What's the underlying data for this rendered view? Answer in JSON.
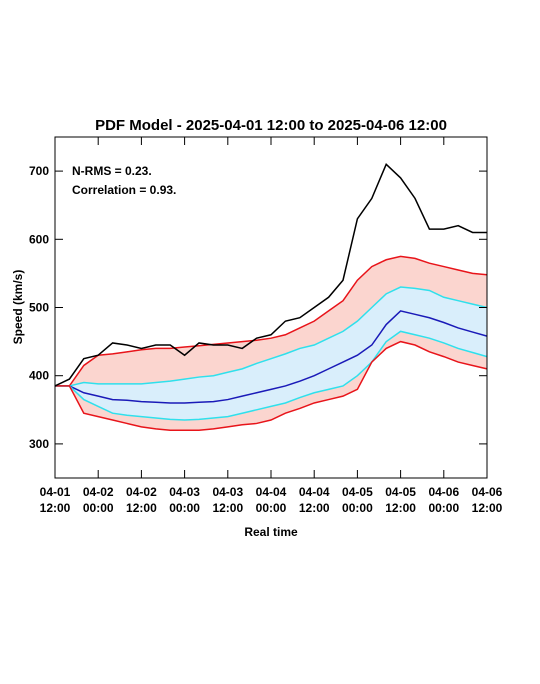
{
  "chart_data": {
    "type": "line",
    "title": "PDF Model - 2025-04-01 12:00 to 2025-04-06 12:00",
    "xlabel": "Real time",
    "ylabel": "Speed (km/s)",
    "annotations": [
      "N-RMS = 0.23.",
      "Correlation = 0.93."
    ],
    "x": [
      0,
      4,
      8,
      12,
      16,
      20,
      24,
      28,
      32,
      36,
      40,
      44,
      48,
      52,
      56,
      60,
      64,
      68,
      72,
      76,
      80,
      84,
      88,
      92,
      96,
      100,
      104,
      108,
      112,
      116,
      120
    ],
    "xlim": [
      0,
      120
    ],
    "xticks": [
      {
        "value": 0,
        "label": "04-01 12:00"
      },
      {
        "value": 12,
        "label": "04-02 00:00"
      },
      {
        "value": 24,
        "label": "04-02 12:00"
      },
      {
        "value": 36,
        "label": "04-03 00:00"
      },
      {
        "value": 48,
        "label": "04-03 12:00"
      },
      {
        "value": 60,
        "label": "04-04 00:00"
      },
      {
        "value": 72,
        "label": "04-04 12:00"
      },
      {
        "value": 84,
        "label": "04-05 00:00"
      },
      {
        "value": 96,
        "label": "04-05 12:00"
      },
      {
        "value": 108,
        "label": "04-06 00:00"
      },
      {
        "value": 120,
        "label": "04-06 12:00"
      }
    ],
    "ylim": [
      250,
      750
    ],
    "yticks": [
      300,
      400,
      500,
      600,
      700
    ],
    "band_colors": [
      "#fbd5cf",
      "#d9eefb"
    ],
    "series": [
      {
        "color": "#e8141a",
        "values": [
          385,
          385,
          415,
          430,
          432,
          435,
          438,
          440,
          440,
          442,
          444,
          446,
          448,
          450,
          452,
          455,
          460,
          470,
          480,
          495,
          510,
          540,
          560,
          570,
          575,
          572,
          565,
          560,
          555,
          550,
          548
        ]
      },
      {
        "color": "#2fe0ec",
        "values": [
          385,
          385,
          390,
          388,
          388,
          388,
          388,
          390,
          392,
          395,
          398,
          400,
          405,
          410,
          418,
          425,
          432,
          440,
          445,
          455,
          465,
          480,
          500,
          520,
          530,
          528,
          525,
          515,
          510,
          505,
          500
        ]
      },
      {
        "color": "#1a1ab8",
        "values": [
          385,
          385,
          375,
          370,
          365,
          364,
          362,
          361,
          360,
          360,
          361,
          362,
          365,
          370,
          375,
          380,
          385,
          392,
          400,
          410,
          420,
          430,
          445,
          475,
          495,
          490,
          485,
          478,
          470,
          464,
          458
        ]
      },
      {
        "color": "#2fe0ec",
        "values": [
          385,
          385,
          365,
          355,
          345,
          342,
          340,
          338,
          336,
          335,
          336,
          338,
          340,
          345,
          350,
          355,
          360,
          368,
          375,
          380,
          385,
          400,
          420,
          450,
          465,
          460,
          455,
          448,
          440,
          434,
          428
        ]
      },
      {
        "color": "#e8141a",
        "values": [
          385,
          385,
          345,
          340,
          335,
          330,
          325,
          322,
          320,
          320,
          320,
          322,
          325,
          328,
          330,
          335,
          345,
          352,
          360,
          365,
          370,
          380,
          420,
          440,
          450,
          445,
          435,
          428,
          420,
          415,
          410
        ]
      },
      {
        "color": "#000000",
        "values": [
          385,
          395,
          425,
          430,
          448,
          445,
          440,
          445,
          445,
          430,
          448,
          445,
          445,
          440,
          455,
          460,
          480,
          485,
          500,
          515,
          540,
          630,
          660,
          710,
          690,
          660,
          615,
          615,
          620,
          610,
          610
        ]
      }
    ]
  }
}
